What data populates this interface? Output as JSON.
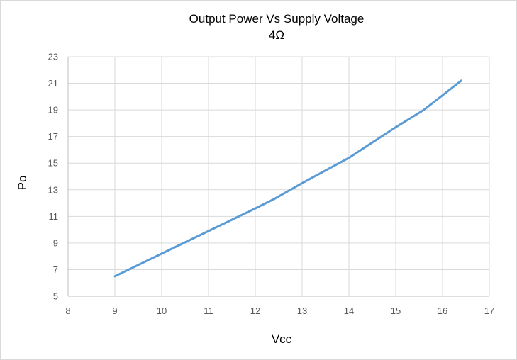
{
  "chart_data": {
    "type": "line",
    "title": "Output Power Vs Supply Voltage",
    "subtitle": "4Ω",
    "xlabel": "Vcc",
    "ylabel": "Po",
    "xlim": [
      8,
      17
    ],
    "ylim": [
      5,
      23
    ],
    "xticks": [
      8,
      9,
      10,
      11,
      12,
      13,
      14,
      15,
      16,
      17
    ],
    "yticks": [
      5,
      7,
      9,
      11,
      13,
      15,
      17,
      19,
      21,
      23
    ],
    "grid": true,
    "legend": "none",
    "series": [
      {
        "color": "#5b9bd5",
        "x": [
          9,
          10,
          11,
          12,
          12.4,
          13,
          14,
          15,
          15.6,
          16,
          16.4
        ],
        "y": [
          6.5,
          8.2,
          9.9,
          11.6,
          12.3,
          13.5,
          15.4,
          17.7,
          19.0,
          20.1,
          21.2
        ]
      }
    ]
  }
}
